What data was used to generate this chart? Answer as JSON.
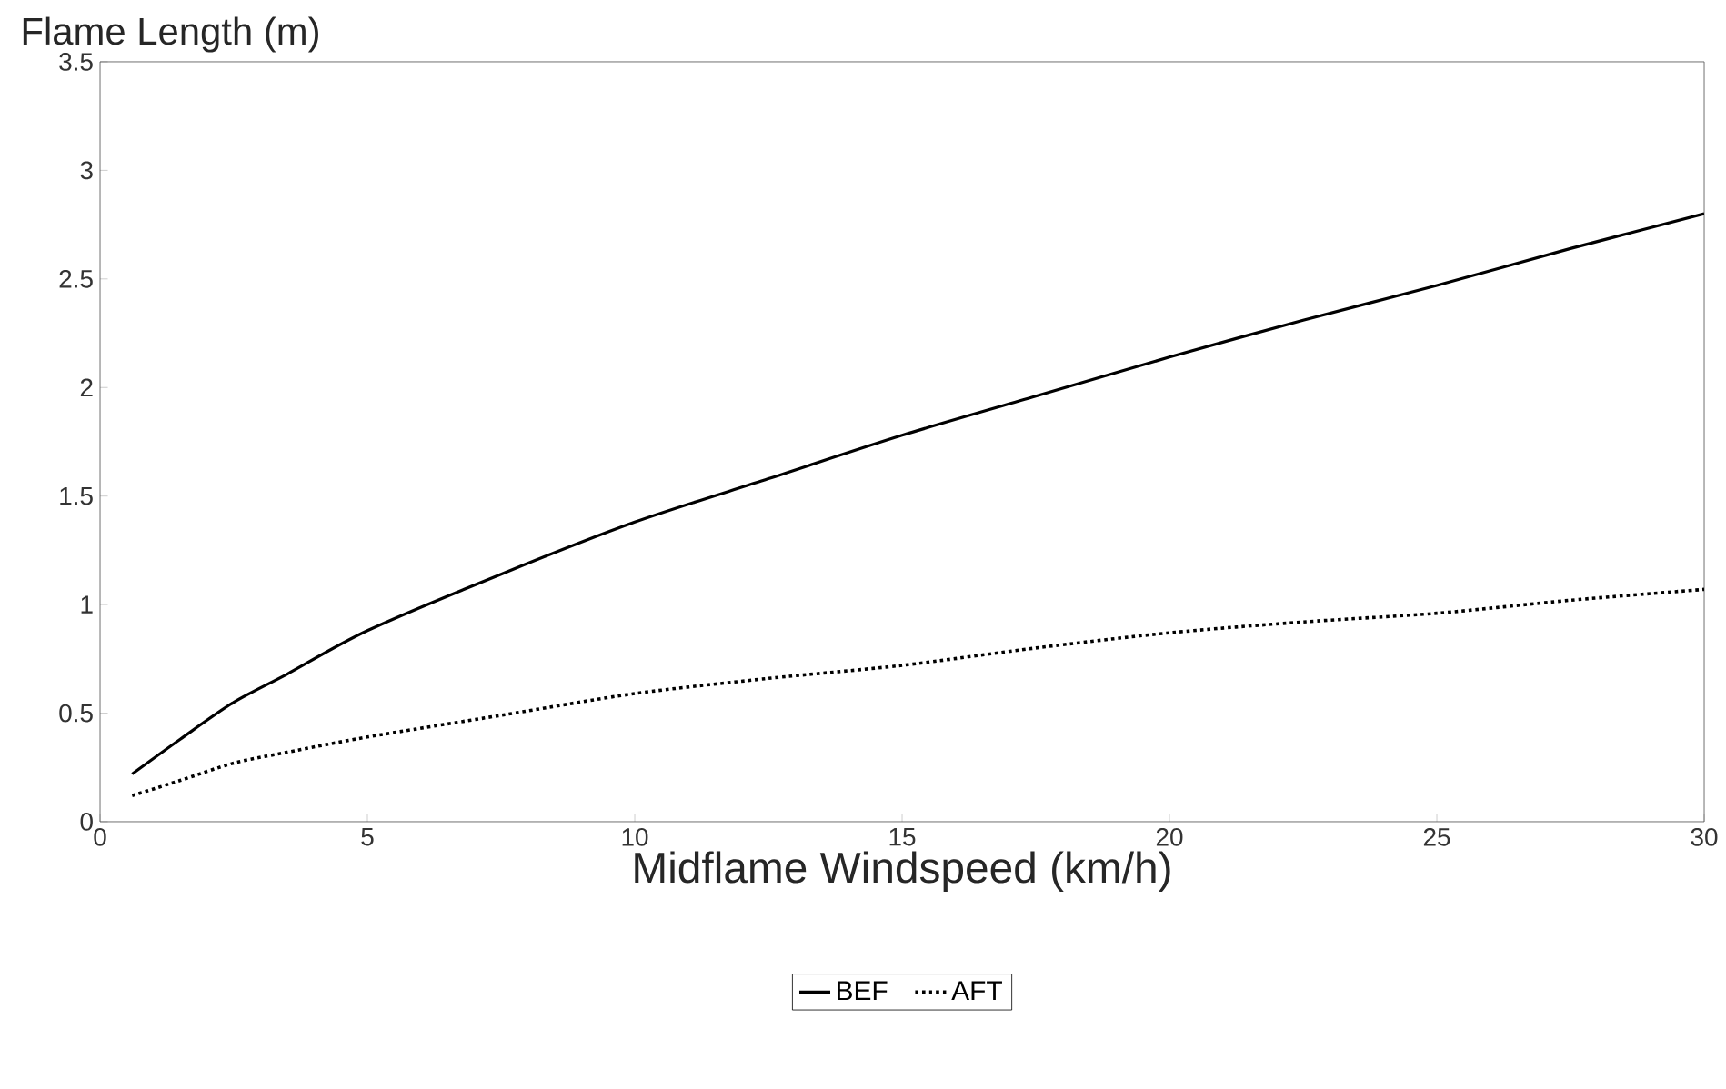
{
  "chart_data": {
    "type": "line",
    "ylabel": "Flame Length (m)",
    "xlabel": "Midflame Windspeed (km/h)",
    "xlim": [
      0,
      30
    ],
    "xticks": [
      0,
      5,
      10,
      15,
      20,
      25,
      30
    ],
    "ylim": [
      0,
      3.5
    ],
    "yticks": [
      0,
      0.5,
      1,
      1.5,
      2,
      2.5,
      3,
      3.5
    ],
    "legend": "bottom",
    "grid": false,
    "marker": "none",
    "series": [
      {
        "name": "BEF",
        "color": "#000000",
        "line_style": "solid",
        "x": [
          0.6,
          1.5,
          2.5,
          3.5,
          5,
          7.5,
          10,
          12.5,
          15,
          17.5,
          20,
          22.5,
          25,
          27.5,
          30
        ],
        "values": [
          0.22,
          0.38,
          0.55,
          0.68,
          0.88,
          1.14,
          1.38,
          1.58,
          1.78,
          1.96,
          2.14,
          2.31,
          2.47,
          2.64,
          2.8
        ]
      },
      {
        "name": "AFT",
        "color": "#000000",
        "line_style": "dotted",
        "x": [
          0.6,
          1.5,
          2.5,
          3.5,
          5,
          7.5,
          10,
          12.5,
          15,
          17.5,
          20,
          22.5,
          25,
          27.5,
          30
        ],
        "values": [
          0.12,
          0.19,
          0.27,
          0.32,
          0.39,
          0.49,
          0.59,
          0.66,
          0.72,
          0.8,
          0.87,
          0.92,
          0.96,
          1.02,
          1.07
        ]
      }
    ]
  }
}
